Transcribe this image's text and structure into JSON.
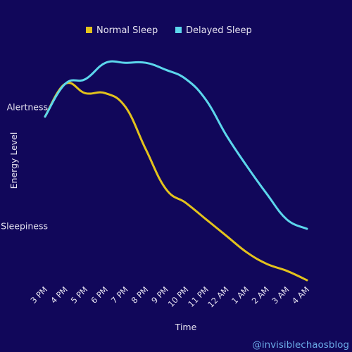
{
  "chart_data": {
    "type": "line",
    "title": "",
    "xlabel": "Time",
    "ylabel": "Energy Level",
    "categories": [
      "3 PM",
      "4 PM",
      "5 PM",
      "6 PM",
      "7 PM",
      "8 PM",
      "9 PM",
      "10 PM",
      "11 PM",
      "12 AM",
      "1 AM",
      "2 AM",
      "3 AM",
      "4 AM"
    ],
    "y_level_labels": [
      {
        "label": "Alertness",
        "value": 7.4
      },
      {
        "label": "Sleepiness",
        "value": 2.3
      }
    ],
    "ylim": [
      0,
      10
    ],
    "series": [
      {
        "name": "Normal Sleep",
        "color": "#e3c21c",
        "values": [
          7.0,
          8.4,
          8.0,
          8.0,
          7.4,
          5.6,
          3.9,
          3.3,
          2.6,
          1.9,
          1.2,
          0.7,
          0.4,
          0.0
        ]
      },
      {
        "name": "Delayed Sleep",
        "color": "#5cd6ec",
        "values": [
          7.0,
          8.4,
          8.6,
          9.3,
          9.3,
          9.3,
          9.0,
          8.6,
          7.7,
          6.2,
          4.9,
          3.7,
          2.6,
          2.2
        ]
      }
    ],
    "legend": "top-center",
    "grid": false,
    "credit": "@invisiblechaosblog"
  }
}
